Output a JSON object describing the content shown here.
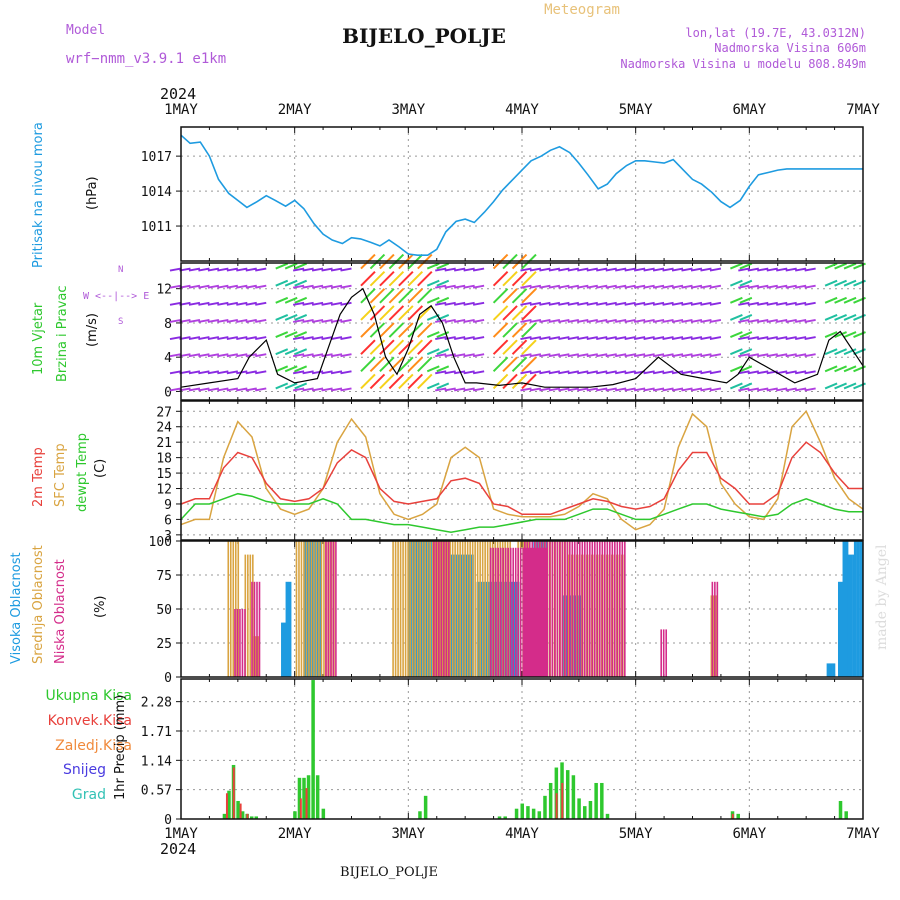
{
  "header": {
    "model_label": "Model",
    "model_name": "wrf−nmm_v3.9.1  e1km",
    "title": "BIJELO_POLJE",
    "subtitle": "Meteogram",
    "lonlat": "lon,lat (19.7E, 43.0312N)",
    "altitude": "Nadmorska Visina 606m",
    "model_altitude": "Nadmorska Visina u modelu 808.849m",
    "footer_title": "BIJELO_POLJE",
    "watermark": "made by Angel",
    "year": "2024"
  },
  "colors": {
    "pressure": "#1e9be0",
    "wind_speed": "#000000",
    "temp_2m": "#e8413c",
    "temp_sfc": "#d9a441",
    "dewpoint": "#2ec82e",
    "cloud_high": "#1e9be0",
    "cloud_mid": "#d9a441",
    "cloud_low": "#d42c8a",
    "precip_total": "#2ec82e",
    "precip_conv": "#e8413c",
    "precip_frozen": "#f08a3c",
    "snow": "#4a3be0",
    "hail": "#33c2b5",
    "purple_text": "#b05ad8"
  },
  "chart_data": [
    {
      "type": "line",
      "name": "pressure",
      "ylabel": "Pritisak na nivou mora",
      "unit": "(hPa)",
      "x_ticks": [
        "1MAY",
        "2MAY",
        "3MAY",
        "4MAY",
        "5MAY",
        "6MAY",
        "7MAY"
      ],
      "y_ticks": [
        1011,
        1014,
        1017
      ],
      "ylim": [
        1008,
        1019.5
      ],
      "series": [
        {
          "x": [
            0,
            0.08,
            0.17,
            0.25,
            0.33,
            0.42,
            0.5,
            0.58,
            0.67,
            0.75,
            0.83,
            0.92,
            1.0,
            1.08,
            1.17,
            1.25,
            1.33,
            1.42,
            1.5,
            1.58,
            1.67,
            1.75,
            1.83,
            1.92,
            2.0,
            2.08,
            2.17,
            2.25,
            2.33,
            2.42,
            2.5,
            2.58,
            2.67,
            2.75,
            2.83,
            2.92,
            3.0,
            3.08,
            3.17,
            3.25,
            3.33,
            3.42,
            3.5,
            3.58,
            3.67,
            3.75,
            3.83,
            3.92,
            4.0,
            4.08,
            4.17,
            4.25,
            4.33,
            4.42,
            4.5,
            4.58,
            4.67,
            4.75,
            4.83,
            4.92,
            5.0,
            5.08,
            5.17,
            5.25,
            5.33,
            5.42,
            5.5,
            5.58,
            5.67,
            5.75,
            5.83,
            5.92,
            6.0
          ],
          "values": [
            1018.8,
            1018.1,
            1018.2,
            1017.0,
            1015.0,
            1013.8,
            1013.2,
            1012.6,
            1013.1,
            1013.6,
            1013.2,
            1012.7,
            1013.2,
            1012.5,
            1011.2,
            1010.3,
            1009.8,
            1009.5,
            1010.0,
            1009.9,
            1009.6,
            1009.3,
            1009.8,
            1009.2,
            1008.6,
            1008.5,
            1008.5,
            1009.0,
            1010.5,
            1011.4,
            1011.6,
            1011.3,
            1012.2,
            1013.1,
            1014.1,
            1015.0,
            1015.8,
            1016.6,
            1017.0,
            1017.5,
            1017.8,
            1017.3,
            1016.4,
            1015.4,
            1014.2,
            1014.6,
            1015.5,
            1016.2,
            1016.6,
            1016.6,
            1016.5,
            1016.4,
            1016.7,
            1015.8,
            1015.0,
            1014.6,
            1013.9,
            1013.1,
            1012.6,
            1013.2,
            1014.4,
            1015.4,
            1015.6,
            1015.8,
            1015.9,
            1015.9,
            1015.9,
            1015.9,
            1015.9,
            1015.9,
            1015.9,
            1015.9,
            1015.9
          ]
        }
      ]
    },
    {
      "type": "line",
      "name": "wind",
      "ylabel_line1": "10m Vjetar",
      "ylabel_line2": "Brzina i Pravac",
      "unit": "(m/s)",
      "compass": "W <--|--> E",
      "compass_north": "N",
      "compass_south": "S",
      "y_ticks": [
        0,
        4,
        8,
        12
      ],
      "ylim": [
        -1,
        15
      ],
      "series": [
        {
          "x": [
            0,
            0.25,
            0.5,
            0.6,
            0.75,
            0.85,
            1.0,
            1.2,
            1.4,
            1.5,
            1.6,
            1.7,
            1.8,
            1.9,
            2.0,
            2.1,
            2.2,
            2.3,
            2.4,
            2.5,
            2.6,
            2.8,
            3.0,
            3.2,
            3.4,
            3.6,
            3.8,
            4.0,
            4.2,
            4.4,
            4.6,
            4.8,
            4.9,
            5.0,
            5.2,
            5.4,
            5.6,
            5.7,
            5.8,
            6.0
          ],
          "values": [
            0.5,
            1.0,
            1.5,
            4.0,
            6.0,
            2.0,
            1.0,
            1.5,
            9.0,
            11.0,
            12.0,
            9.0,
            4.0,
            2.0,
            5.0,
            9.0,
            10.0,
            8.0,
            4.0,
            1.0,
            1.0,
            0.7,
            1.0,
            0.5,
            0.5,
            0.5,
            0.8,
            1.5,
            4.0,
            2.0,
            1.5,
            1.0,
            2.0,
            4.0,
            2.5,
            1.0,
            2.0,
            6.0,
            7.0,
            3.0
          ]
        }
      ]
    },
    {
      "type": "line",
      "name": "temperature",
      "ylabel_2m": "2m Temp",
      "ylabel_sfc": "SFC Temp",
      "ylabel_dewpt": "dewpt Temp",
      "unit": "(C)",
      "y_ticks": [
        3,
        6,
        9,
        12,
        15,
        18,
        21,
        24,
        27
      ],
      "ylim": [
        2,
        29
      ],
      "series": [
        {
          "name": "2m Temp",
          "x": [
            0,
            0.125,
            0.25,
            0.375,
            0.5,
            0.625,
            0.75,
            0.875,
            1.0,
            1.125,
            1.25,
            1.375,
            1.5,
            1.625,
            1.75,
            1.875,
            2.0,
            2.125,
            2.25,
            2.375,
            2.5,
            2.625,
            2.75,
            2.875,
            3.0,
            3.125,
            3.25,
            3.375,
            3.5,
            3.625,
            3.75,
            3.875,
            4.0,
            4.125,
            4.25,
            4.375,
            4.5,
            4.625,
            4.75,
            4.875,
            5.0,
            5.125,
            5.25,
            5.375,
            5.5,
            5.625,
            5.75,
            5.875,
            6.0
          ],
          "values": [
            9,
            10,
            10,
            16,
            19,
            18,
            13,
            10,
            9.5,
            10,
            12,
            17,
            19.5,
            18,
            12,
            9.5,
            9,
            9.5,
            10,
            13.5,
            14,
            13,
            9,
            8.5,
            7,
            7,
            7,
            8,
            9,
            10,
            9.5,
            8.5,
            8,
            8.5,
            10,
            15.5,
            19,
            19,
            14,
            12,
            9,
            9,
            11,
            18,
            21,
            19,
            15,
            12,
            12
          ]
        },
        {
          "name": "SFC Temp",
          "x": [
            0,
            0.125,
            0.25,
            0.375,
            0.5,
            0.625,
            0.75,
            0.875,
            1.0,
            1.125,
            1.25,
            1.375,
            1.5,
            1.625,
            1.75,
            1.875,
            2.0,
            2.125,
            2.25,
            2.375,
            2.5,
            2.625,
            2.75,
            2.875,
            3.0,
            3.125,
            3.25,
            3.375,
            3.5,
            3.625,
            3.75,
            3.875,
            4.0,
            4.125,
            4.25,
            4.375,
            4.5,
            4.625,
            4.75,
            4.875,
            5.0,
            5.125,
            5.25,
            5.375,
            5.5,
            5.625,
            5.75,
            5.875,
            6.0
          ],
          "values": [
            5,
            6,
            6,
            18,
            25,
            22,
            12,
            8,
            7,
            8,
            12,
            21,
            25.5,
            22,
            11,
            7,
            6,
            7,
            9,
            18,
            20,
            18,
            8,
            7,
            6.5,
            6.5,
            6.5,
            7,
            8.5,
            11,
            10,
            6,
            4,
            5,
            8,
            20,
            26.5,
            24,
            13,
            9,
            6.5,
            6,
            10,
            24,
            27,
            21,
            14,
            10,
            8
          ]
        },
        {
          "name": "dewpt Temp",
          "x": [
            0,
            0.125,
            0.25,
            0.375,
            0.5,
            0.625,
            0.75,
            0.875,
            1.0,
            1.125,
            1.25,
            1.375,
            1.5,
            1.625,
            1.75,
            1.875,
            2.0,
            2.125,
            2.25,
            2.375,
            2.5,
            2.625,
            2.75,
            2.875,
            3.0,
            3.125,
            3.25,
            3.375,
            3.5,
            3.625,
            3.75,
            3.875,
            4.0,
            4.125,
            4.25,
            4.375,
            4.5,
            4.625,
            4.75,
            4.875,
            5.0,
            5.125,
            5.25,
            5.375,
            5.5,
            5.625,
            5.75,
            5.875,
            6.0
          ],
          "values": [
            6,
            9,
            9,
            10,
            11,
            10.5,
            9.5,
            9,
            9,
            9,
            10,
            9,
            6,
            6,
            5.5,
            5,
            5,
            4.5,
            4,
            3.5,
            4,
            4.5,
            4.5,
            5,
            5.5,
            6,
            6,
            6,
            7,
            8,
            8,
            7,
            6,
            6,
            7,
            8,
            9,
            9,
            8,
            7.5,
            7,
            6.5,
            7,
            9,
            10,
            9,
            8,
            7.5,
            7.5
          ]
        }
      ]
    },
    {
      "type": "bar",
      "name": "clouds",
      "ylabel_high": "Visoka Oblacnost",
      "ylabel_mid": "Srednja Oblacnost",
      "ylabel_low": "Niska Oblacnost",
      "unit": "(%)",
      "y_ticks": [
        0,
        25,
        50,
        75,
        100
      ],
      "ylim": [
        0,
        100
      ],
      "series": [
        {
          "name": "high",
          "segments": [
            [
              0.88,
              0.92,
              40
            ],
            [
              0.92,
              0.96,
              70
            ],
            [
              1.08,
              1.22,
              100
            ],
            [
              2.0,
              2.2,
              100
            ],
            [
              2.3,
              2.55,
              90
            ],
            [
              2.6,
              2.95,
              70
            ],
            [
              3.1,
              3.2,
              100
            ],
            [
              3.35,
              3.5,
              60
            ],
            [
              5.68,
              5.75,
              10
            ],
            [
              5.78,
              5.82,
              70
            ],
            [
              5.82,
              5.86,
              100
            ],
            [
              5.86,
              5.92,
              90
            ],
            [
              5.92,
              5.98,
              100
            ]
          ]
        },
        {
          "name": "mid",
          "segments": [
            [
              0.4,
              0.5,
              100
            ],
            [
              0.55,
              0.62,
              90
            ],
            [
              0.62,
              0.68,
              30
            ],
            [
              1.0,
              1.35,
              100
            ],
            [
              1.85,
              2.0,
              100
            ],
            [
              2.0,
              2.9,
              100
            ],
            [
              2.95,
              3.05,
              100
            ],
            [
              3.1,
              3.4,
              100
            ],
            [
              3.4,
              3.9,
              90
            ],
            [
              4.65,
              4.7,
              60
            ],
            [
              4.7,
              4.72,
              10
            ]
          ]
        },
        {
          "name": "low",
          "segments": [
            [
              0.45,
              0.55,
              50
            ],
            [
              0.6,
              0.68,
              70
            ],
            [
              1.25,
              1.35,
              100
            ],
            [
              2.2,
              2.35,
              100
            ],
            [
              2.7,
              3.2,
              95
            ],
            [
              3.0,
              3.9,
              100
            ],
            [
              4.2,
              4.25,
              35
            ],
            [
              4.65,
              4.7,
              70
            ],
            [
              5.7,
              5.8,
              5
            ]
          ]
        }
      ]
    },
    {
      "type": "bar",
      "name": "precipitation",
      "legend_total": "Ukupna Kisa",
      "legend_conv": "Konvek.Kisa",
      "legend_frozen": "Zaledj.Kisa",
      "legend_snow": "Snijeg",
      "legend_hail": "Grad",
      "ylabel": "1hr Precip (mm)",
      "y_ticks": [
        0,
        0.57,
        1.14,
        1.71,
        2.28
      ],
      "ylim": [
        0,
        2.72
      ],
      "x_ticks": [
        "1MAY",
        "2MAY",
        "3MAY",
        "4MAY",
        "5MAY",
        "6MAY",
        "7MAY"
      ],
      "series": [
        {
          "name": "total",
          "x": [
            0.38,
            0.42,
            0.46,
            0.5,
            0.54,
            0.58,
            0.62,
            0.66,
            1.0,
            1.04,
            1.08,
            1.12,
            1.16,
            1.2,
            1.25,
            2.1,
            2.15,
            2.8,
            2.85,
            2.95,
            3.0,
            3.05,
            3.1,
            3.15,
            3.2,
            3.25,
            3.3,
            3.35,
            3.4,
            3.45,
            3.5,
            3.55,
            3.6,
            3.65,
            3.7,
            3.75,
            4.85,
            4.9,
            5.8,
            5.85
          ],
          "values": [
            0.1,
            0.55,
            1.05,
            0.35,
            0.15,
            0.1,
            0.05,
            0.05,
            0.15,
            0.8,
            0.8,
            0.85,
            2.7,
            0.85,
            0.2,
            0.15,
            0.45,
            0.05,
            0.05,
            0.2,
            0.3,
            0.25,
            0.2,
            0.15,
            0.45,
            0.7,
            1.0,
            1.1,
            0.95,
            0.85,
            0.4,
            0.25,
            0.35,
            0.7,
            0.7,
            0.1,
            0.15,
            0.1,
            0.35,
            0.15
          ]
        },
        {
          "name": "convective",
          "x": [
            0.4,
            0.46,
            0.52,
            0.58,
            1.05,
            1.1,
            3.3,
            3.35,
            4.85
          ],
          "values": [
            0.5,
            1.0,
            0.3,
            0.1,
            0.4,
            0.6,
            0.5,
            0.7,
            0.1
          ]
        }
      ]
    }
  ]
}
